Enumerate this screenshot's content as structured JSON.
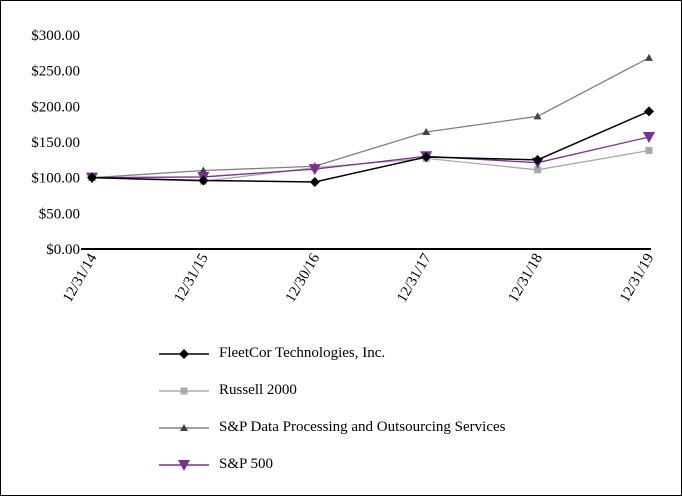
{
  "chart_data": {
    "type": "line",
    "categories": [
      "12/31/14",
      "12/31/15",
      "12/30/16",
      "12/31/17",
      "12/31/18",
      "12/31/19"
    ],
    "ylim": [
      0,
      300
    ],
    "yticks": [
      "$0.00",
      "$50.00",
      "$100.00",
      "$150.00",
      "$200.00",
      "$250.00",
      "$300.00"
    ],
    "grid": false,
    "legend_placement": "bottom",
    "series": [
      {
        "name": "FleetCor Technologies, Inc.",
        "values": [
          100,
          96,
          94,
          129,
          125,
          193
        ],
        "color": "#000000",
        "marker": "diamond"
      },
      {
        "name": "Russell 2000",
        "values": [
          100,
          95,
          114,
          127,
          111,
          138
        ],
        "color": "#aaaaaa",
        "marker": "square"
      },
      {
        "name": "S&P Data Processing and Outsourcing Services",
        "values": [
          100,
          110,
          116,
          164,
          186,
          268
        ],
        "color": "#808080",
        "marker": "triangle-up"
      },
      {
        "name": "S&P 500",
        "values": [
          100,
          101,
          112,
          130,
          121,
          157
        ],
        "color": "#7b2f8e",
        "marker": "triangle-down"
      }
    ]
  }
}
